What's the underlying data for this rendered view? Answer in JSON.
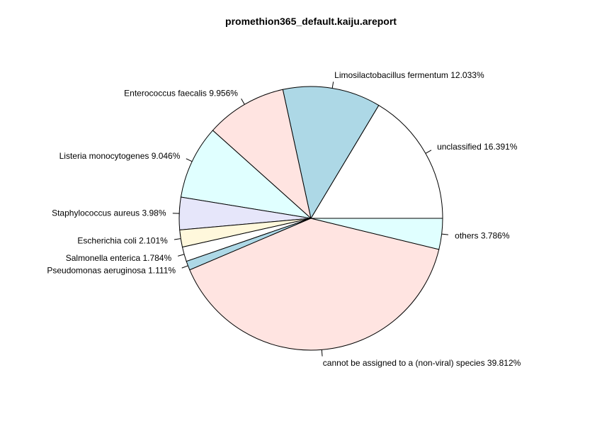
{
  "chart_data": {
    "type": "pie",
    "title": "promethion365_default.kaiju.areport",
    "slices": [
      {
        "label": "unclassified",
        "percent_text": "16.391%",
        "value": 16.391,
        "color": "#ffffff"
      },
      {
        "label": "Limosilactobacillus fermentum",
        "percent_text": "12.033%",
        "value": 12.033,
        "color": "#add8e6"
      },
      {
        "label": "Enterococcus faecalis",
        "percent_text": "9.956%",
        "value": 9.956,
        "color": "#ffe4e1"
      },
      {
        "label": "Listeria monocytogenes",
        "percent_text": "9.046%",
        "value": 9.046,
        "color": "#e0ffff"
      },
      {
        "label": "Staphylococcus aureus",
        "percent_text": "3.98%",
        "value": 3.98,
        "color": "#e6e6fa"
      },
      {
        "label": "Escherichia coli",
        "percent_text": "2.101%",
        "value": 2.101,
        "color": "#fff8dc"
      },
      {
        "label": "Salmonella enterica",
        "percent_text": "1.784%",
        "value": 1.784,
        "color": "#ffffff"
      },
      {
        "label": "Pseudomonas aeruginosa",
        "percent_text": "1.111%",
        "value": 1.111,
        "color": "#add8e6"
      },
      {
        "label": "cannot be assigned to a (non-viral) species",
        "percent_text": "39.812%",
        "value": 39.812,
        "color": "#ffe4e1"
      },
      {
        "label": "others",
        "percent_text": "3.786%",
        "value": 3.786,
        "color": "#e0ffff"
      }
    ],
    "direction": "counterclockwise",
    "start_angle_deg": 0,
    "legend": "none",
    "grid": false
  }
}
